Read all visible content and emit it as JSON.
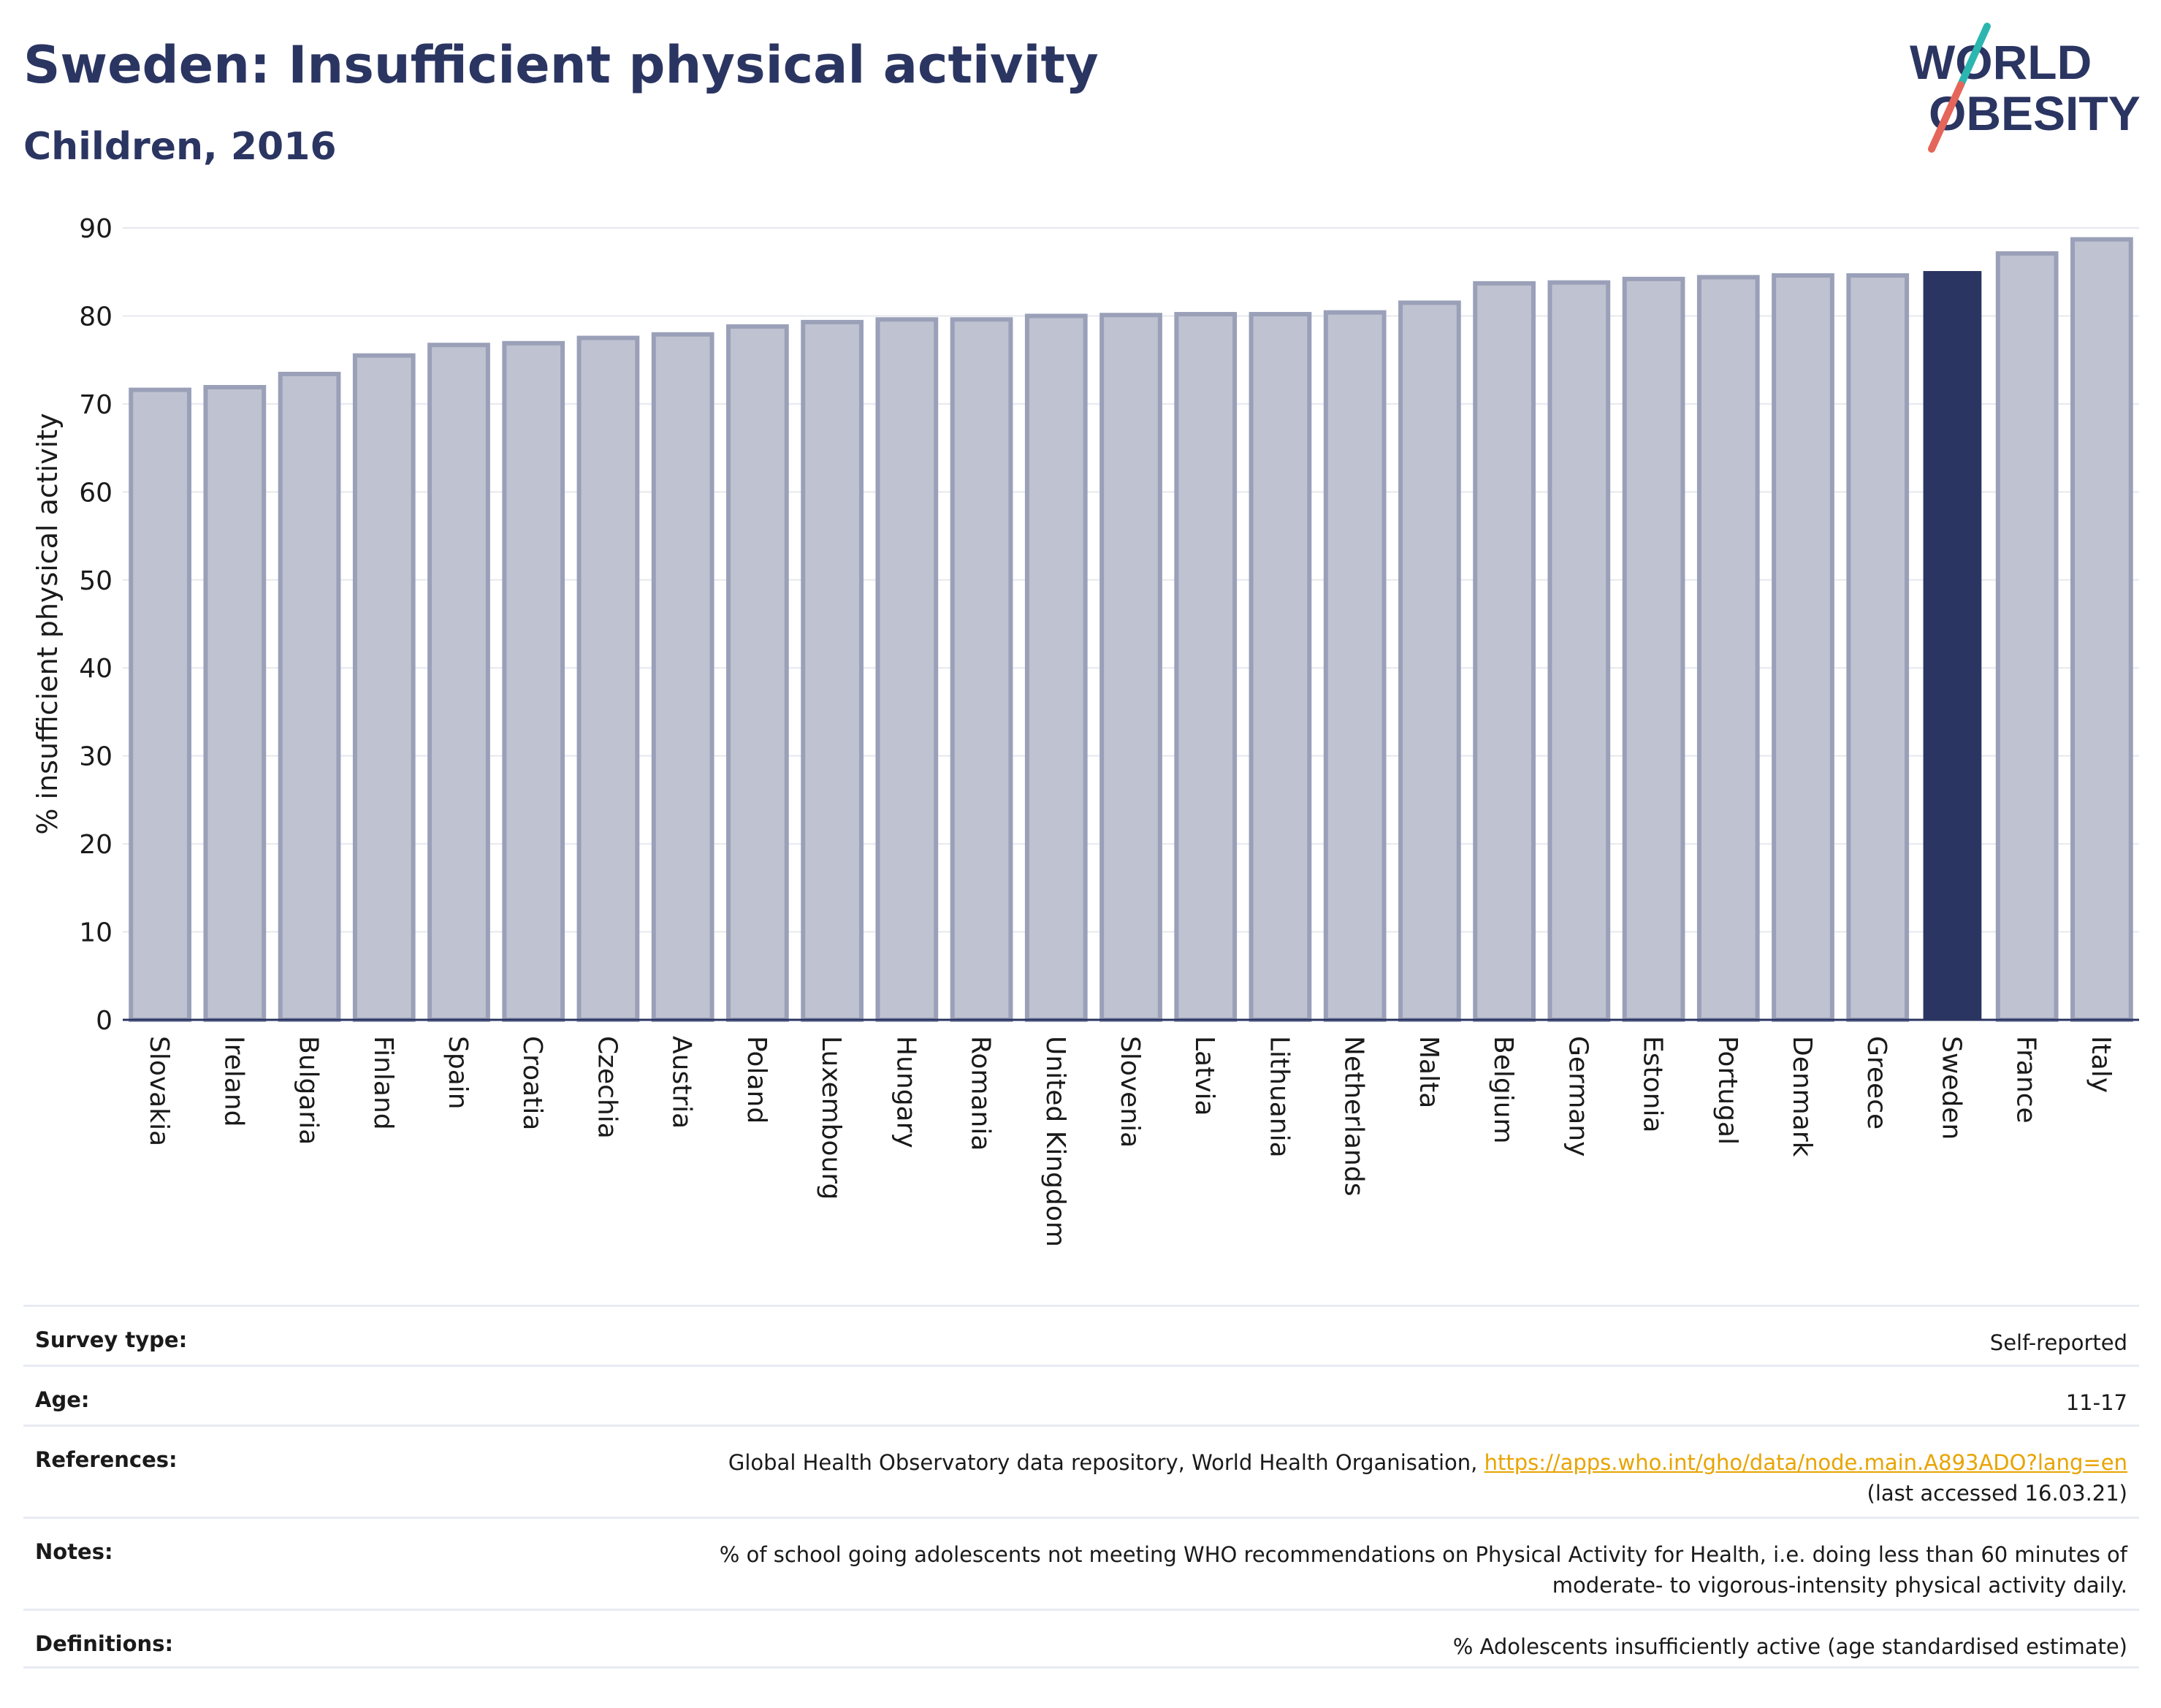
{
  "header": {
    "title": "Sweden: Insufficient physical activity",
    "subtitle": "Children, 2016"
  },
  "logo": {
    "line1": "WORLD",
    "line2": "OBESITY",
    "colors": {
      "text": "#2b3562",
      "slash_top": "#2cb6b0",
      "slash_bottom": "#e4665a"
    }
  },
  "chart_data": {
    "type": "bar",
    "ylabel": "% insufficient physical activity",
    "xlabel": "",
    "ylim": [
      0,
      90
    ],
    "yticks": [
      0,
      10,
      20,
      30,
      40,
      50,
      60,
      70,
      80,
      90
    ],
    "grid": true,
    "highlight": "Sweden",
    "colors": {
      "bar": "#bfc2d0",
      "bar_edge": "#9aa0b8",
      "highlight": "#2b3562"
    },
    "categories": [
      "Slovakia",
      "Ireland",
      "Bulgaria",
      "Finland",
      "Spain",
      "Croatia",
      "Czechia",
      "Austria",
      "Poland",
      "Luxembourg",
      "Hungary",
      "Romania",
      "United Kingdom",
      "Slovenia",
      "Latvia",
      "Lithuania",
      "Netherlands",
      "Malta",
      "Belgium",
      "Germany",
      "Estonia",
      "Portugal",
      "Denmark",
      "Greece",
      "Sweden",
      "France",
      "Italy"
    ],
    "values": [
      71.6,
      71.9,
      73.4,
      75.5,
      76.7,
      76.9,
      77.5,
      77.9,
      78.8,
      79.3,
      79.6,
      79.6,
      80.0,
      80.1,
      80.2,
      80.2,
      80.4,
      81.5,
      83.7,
      83.8,
      84.2,
      84.4,
      84.6,
      84.6,
      85.1,
      87.1,
      88.7
    ]
  },
  "info": {
    "survey_type": {
      "label": "Survey type:",
      "value": "Self-reported"
    },
    "age": {
      "label": "Age:",
      "value": "11-17"
    },
    "references": {
      "label": "References:",
      "text": "Global Health Observatory data repository, World Health Organisation, ",
      "link": "https://apps.who.int/gho/data/node.main.A893ADO?lang=en",
      "accessed": "(last accessed 16.03.21)"
    },
    "notes": {
      "label": "Notes:",
      "line1": "% of school going adolescents not meeting WHO recommendations on Physical Activity for Health, i.e. doing less than 60 minutes of",
      "line2": "moderate- to vigorous-intensity physical activity daily."
    },
    "definitions": {
      "label": "Definitions:",
      "value": "% Adolescents insufficiently active (age standardised estimate)"
    }
  }
}
